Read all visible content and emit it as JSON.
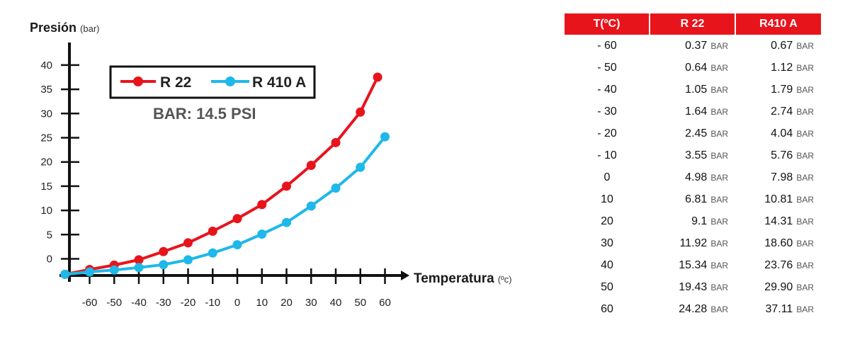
{
  "chart_data": {
    "type": "line",
    "ylabel": "Presión",
    "ylabel_unit": "(bar)",
    "xlabel": "Temperatura",
    "xlabel_unit": "(ºc)",
    "x_ticks": [
      "-60",
      "-50",
      "-40",
      "-30",
      "-20",
      "-10",
      "0",
      "10",
      "20",
      "30",
      "40",
      "50",
      "60"
    ],
    "y_ticks": [
      "0",
      "5",
      "10",
      "15",
      "20",
      "25",
      "30",
      "35",
      "40"
    ],
    "annotation": "BAR: 14.5 PSI",
    "series": [
      {
        "name": "R 22",
        "color": "#e8141c",
        "x": [
          -70,
          -60,
          -50,
          -40,
          -30,
          -20,
          -10,
          0,
          10,
          20,
          30,
          40,
          50,
          57
        ],
        "y": [
          -3.2,
          -2.2,
          -1.3,
          -0.2,
          1.5,
          3.3,
          5.7,
          8.3,
          11.2,
          15.0,
          19.3,
          24.0,
          30.3,
          37.5
        ]
      },
      {
        "name": "R 410 A",
        "color": "#1eb8ea",
        "x": [
          -70,
          -60,
          -50,
          -40,
          -30,
          -20,
          -10,
          0,
          10,
          20,
          30,
          40,
          50,
          60
        ],
        "y": [
          -3.2,
          -2.7,
          -2.3,
          -1.8,
          -1.2,
          -0.2,
          1.2,
          2.9,
          5.1,
          7.5,
          10.9,
          14.6,
          18.9,
          25.2
        ]
      }
    ]
  },
  "table": {
    "headers": [
      "T(ºC)",
      "R 22",
      "R410 A"
    ],
    "unit": "BAR",
    "rows": [
      [
        "- 60",
        "0.37",
        "0.67"
      ],
      [
        "- 50",
        "0.64",
        "1.12"
      ],
      [
        "- 40",
        "1.05",
        "1.79"
      ],
      [
        "- 30",
        "1.64",
        "2.74"
      ],
      [
        "- 20",
        "2.45",
        "4.04"
      ],
      [
        "- 10",
        "3.55",
        "5.76"
      ],
      [
        "0",
        "4.98",
        "7.98"
      ],
      [
        "10",
        "6.81",
        "10.81"
      ],
      [
        "20",
        "9.1",
        "14.31"
      ],
      [
        "30",
        "11.92",
        "18.60"
      ],
      [
        "40",
        "15.34",
        "23.76"
      ],
      [
        "50",
        "19.43",
        "29.90"
      ],
      [
        "60",
        "24.28",
        "37.11"
      ]
    ]
  }
}
